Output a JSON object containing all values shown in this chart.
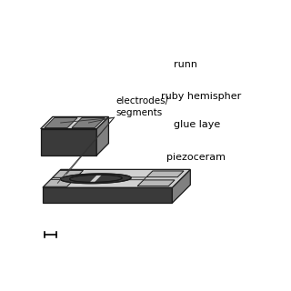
{
  "bg_color": "#ffffff",
  "dark_gray": "#3a3a3a",
  "mid_gray": "#808080",
  "light_gray": "#b8b8b8",
  "lighter_gray": "#d0d0d0",
  "edge_color": "#1a1a1a",
  "figsize": [
    3.2,
    3.2
  ],
  "dpi": 100,
  "labels": {
    "electrodes": "electrodes/\nsegments",
    "runner": "runn",
    "ruby": "ruby hemispher",
    "glue": "glue laye",
    "piezo": "piezoceram"
  }
}
